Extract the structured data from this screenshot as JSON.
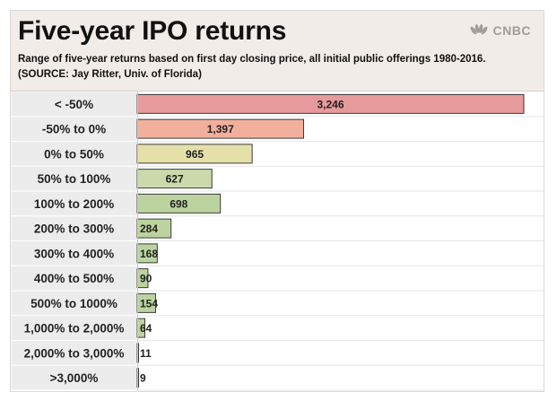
{
  "header": {
    "title": "Five-year IPO returns",
    "subtitle": "Range of five-year returns based on first day closing price, all  initial public offerings 1980-2016. (SOURCE: Jay Ritter, Univ. of Florida)",
    "brand": "CNBC"
  },
  "chart_data": {
    "type": "bar",
    "orientation": "horizontal",
    "title": "Five-year IPO returns",
    "subtitle": "Range of five-year returns based on first day closing price, all  initial public offerings 1980-2016. (SOURCE: Jay Ritter, Univ. of Florida)",
    "categories": [
      "< -50%",
      "-50% to 0%",
      "0% to 50%",
      "50% to 100%",
      "100% to 200%",
      "200% to 300%",
      "300% to 400%",
      "400% to 500%",
      "500% to 1000%",
      "1,000% to 2,000%",
      "2,000% to 3,000%",
      ">3,000%"
    ],
    "values": [
      3246,
      1397,
      965,
      627,
      698,
      284,
      168,
      90,
      154,
      64,
      11,
      9
    ],
    "value_labels": [
      "3,246",
      "1,397",
      "965",
      "627",
      "698",
      "284",
      "168",
      "90",
      "154",
      "64",
      "11",
      "9"
    ],
    "xlim": [
      0,
      3246
    ],
    "bar_colors": [
      "#e79a9b",
      "#f2b09c",
      "#e4e0a8",
      "#cbdaaa",
      "#bcd39f",
      "#bcd39f",
      "#bcd39f",
      "#bcd39f",
      "#bcd39f",
      "#bcd39f",
      "#bcd39f",
      "#bcd39f"
    ],
    "grid": false,
    "legend": "none"
  }
}
